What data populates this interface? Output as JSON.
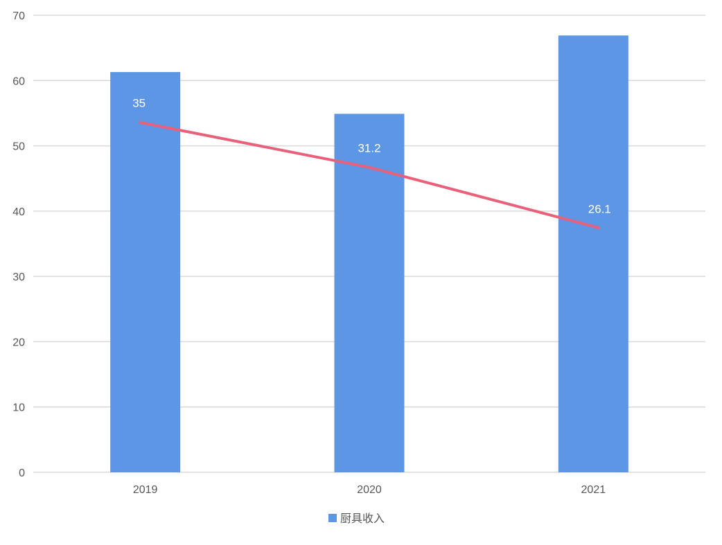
{
  "chart_data": {
    "type": "bar",
    "title": "",
    "xlabel": "",
    "ylabel": "",
    "categories": [
      "2019",
      "2020",
      "2021"
    ],
    "ylim": [
      0,
      70
    ],
    "yticks": [
      "0",
      "10",
      "20",
      "30",
      "40",
      "50",
      "60",
      "70"
    ],
    "grid": true,
    "legend_position": "bottom",
    "series": [
      {
        "name": "厨具收入",
        "type": "bar",
        "axis": "primary",
        "color": "#5e96e6",
        "values": [
          61.3,
          54.9,
          66.9
        ],
        "in_legend": true
      },
      {
        "name": "",
        "type": "line",
        "axis": "secondary-hidden",
        "color": "#e9607a",
        "values": [
          35,
          31.2,
          26.1
        ],
        "labels": [
          "35",
          "31.2",
          "26.1"
        ],
        "in_legend": false
      }
    ],
    "y2lim": [
      5.55,
      44
    ]
  }
}
